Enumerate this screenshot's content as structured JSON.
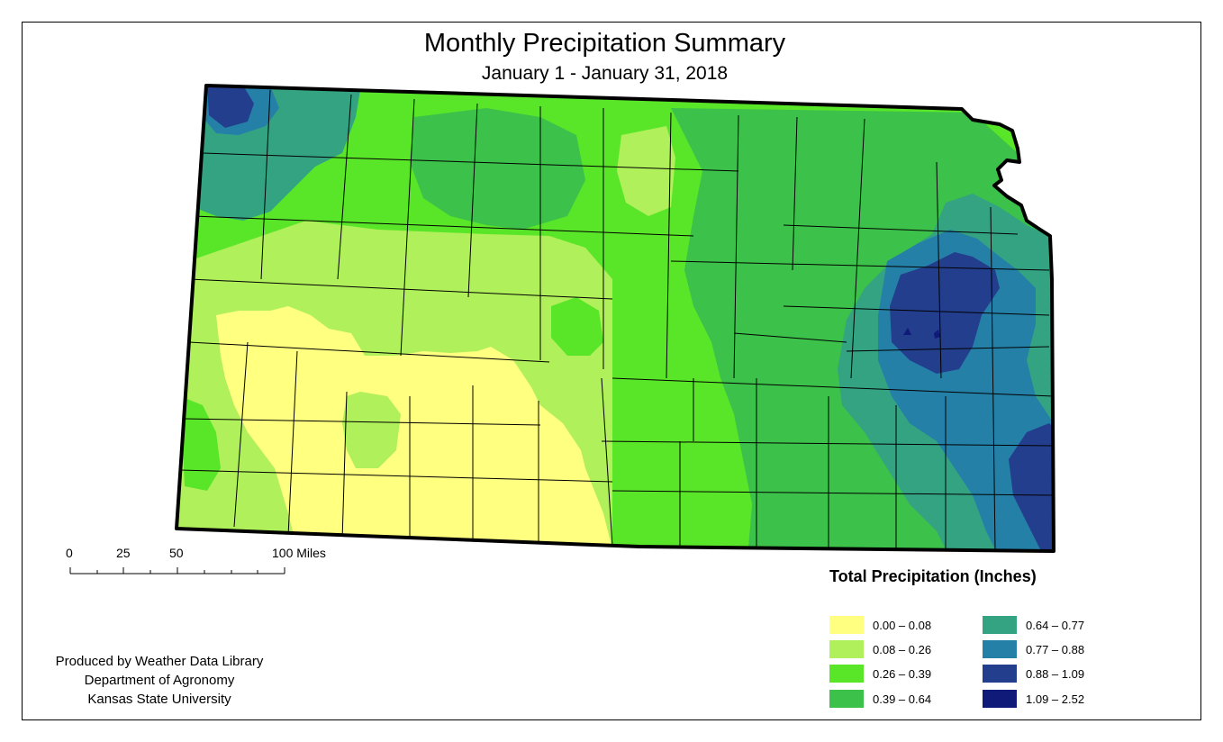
{
  "title": "Monthly Precipitation Summary",
  "subtitle": "January 1 - January 31, 2018",
  "scale": {
    "ticks": [
      "0",
      "25",
      "50",
      "100 Miles"
    ]
  },
  "credits": {
    "line1": "Produced by Weather Data Library",
    "line2": "Department of Agronomy",
    "line3": "Kansas State University"
  },
  "legend": {
    "title": "Total Precipitation (Inches)",
    "items": [
      {
        "label": "0.00 – 0.08",
        "color": "#ffff80"
      },
      {
        "label": "0.08 – 0.26",
        "color": "#b0f05a"
      },
      {
        "label": "0.26 – 0.39",
        "color": "#5ae628"
      },
      {
        "label": "0.39 – 0.64",
        "color": "#3cc24a"
      },
      {
        "label": "0.64 – 0.77",
        "color": "#34a382"
      },
      {
        "label": "0.77 – 0.88",
        "color": "#2580a8"
      },
      {
        "label": "0.88 – 1.09",
        "color": "#233e8c"
      },
      {
        "label": "1.09 – 2.52",
        "color": "#101a78"
      }
    ]
  }
}
